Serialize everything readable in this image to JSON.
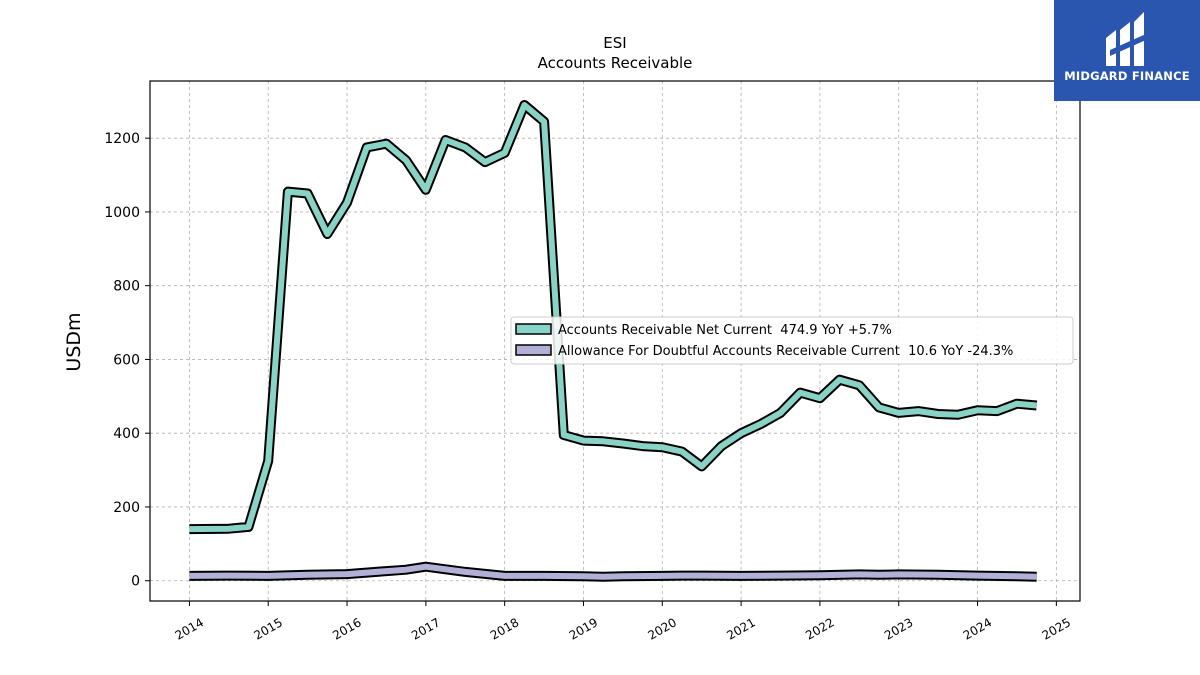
{
  "chart_data": {
    "type": "line",
    "title": "ESI",
    "subtitle": "Accounts Receivable",
    "xlabel": "",
    "ylabel": "USDm",
    "xlim": [
      2013.5,
      2025.3
    ],
    "ylim": [
      -55,
      1355
    ],
    "grid": true,
    "legend_position": "center-right",
    "x_ticks": [
      2014,
      2015,
      2016,
      2017,
      2018,
      2019,
      2020,
      2021,
      2022,
      2023,
      2024,
      2025
    ],
    "y_ticks": [
      0,
      200,
      400,
      600,
      800,
      1000,
      1200
    ],
    "series": [
      {
        "name": "Accounts Receivable Net Current",
        "legend_label": "Accounts Receivable Net Current  474.9 YoY +5.7%",
        "color": "#88d3c5",
        "x": [
          2014.0,
          2014.5,
          2014.75,
          2015.0,
          2015.25,
          2015.5,
          2015.75,
          2016.0,
          2016.25,
          2016.5,
          2016.75,
          2017.0,
          2017.25,
          2017.5,
          2017.75,
          2018.0,
          2018.25,
          2018.5,
          2018.75,
          2019.0,
          2019.25,
          2019.5,
          2019.75,
          2020.0,
          2020.25,
          2020.5,
          2020.75,
          2021.0,
          2021.25,
          2021.5,
          2021.75,
          2022.0,
          2022.25,
          2022.5,
          2022.75,
          2023.0,
          2023.25,
          2023.5,
          2023.75,
          2024.0,
          2024.25,
          2024.5,
          2024.75
        ],
        "values": [
          140,
          141,
          146,
          325,
          1055,
          1050,
          940,
          1025,
          1175,
          1185,
          1140,
          1060,
          1195,
          1175,
          1135,
          1160,
          1290,
          1245,
          395,
          380,
          378,
          372,
          365,
          362,
          350,
          310,
          365,
          400,
          425,
          455,
          510,
          495,
          545,
          530,
          470,
          455,
          460,
          452,
          450,
          462,
          460,
          480,
          475
        ]
      },
      {
        "name": "Allowance For Doubtful Accounts Receivable Current",
        "legend_label": "Allowance For Doubtful Accounts Receivable Current  10.6 YoY -24.3%",
        "color": "#b3b0d7",
        "x": [
          2014.0,
          2014.5,
          2015.0,
          2015.5,
          2016.0,
          2016.5,
          2016.75,
          2017.0,
          2017.5,
          2018.0,
          2018.5,
          2019.0,
          2019.25,
          2019.5,
          2020.0,
          2020.25,
          2020.5,
          2021.0,
          2021.5,
          2022.0,
          2022.5,
          2022.75,
          2023.0,
          2023.5,
          2024.0,
          2024.5,
          2024.75
        ],
        "values": [
          13,
          14,
          13,
          16,
          18,
          26,
          30,
          38,
          24,
          13,
          13,
          12,
          11,
          12,
          13,
          14,
          14,
          13,
          14,
          15,
          17,
          16,
          17,
          16,
          14,
          12,
          11
        ]
      }
    ]
  },
  "brand": {
    "name": "MIDGARD FINANCE",
    "color": "#2b56b0"
  }
}
